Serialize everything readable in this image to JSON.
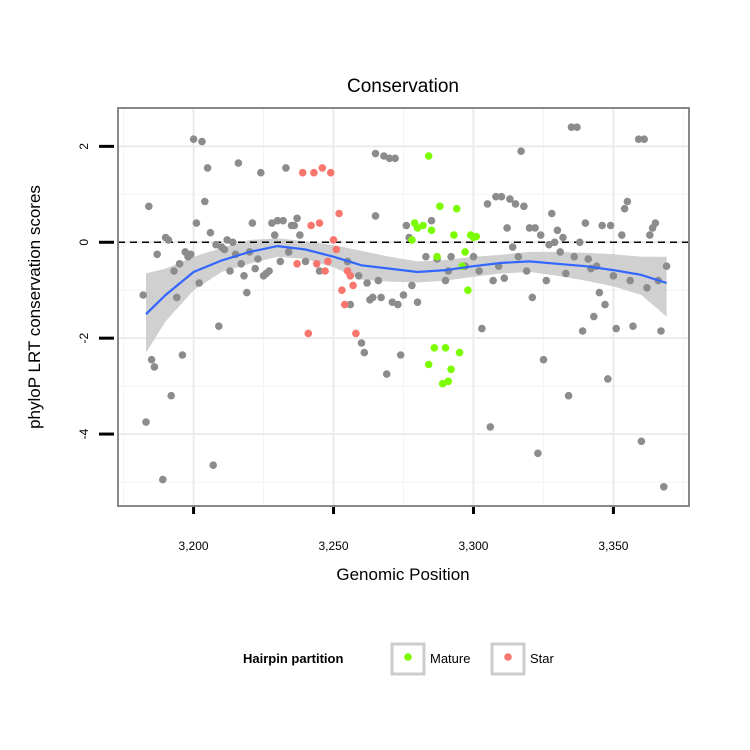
{
  "chart_data": {
    "type": "scatter",
    "title": "Conservation",
    "xlabel": "Genomic Position",
    "ylabel": "phyloP LRT conservation scores",
    "xlim": [
      3173,
      3377
    ],
    "ylim": [
      -5.5,
      2.8
    ],
    "x_ticks": [
      3200,
      3250,
      3300,
      3350
    ],
    "x_tick_labels": [
      "3,200",
      "3,250",
      "3,300",
      "3,350"
    ],
    "y_ticks": [
      -4,
      -2,
      0,
      2
    ],
    "y_tick_labels": [
      "-4",
      "-2",
      "0",
      "2"
    ],
    "reference_line": {
      "y": 0,
      "style": "dashed"
    },
    "grid": true,
    "legend": {
      "title": "Hairpin partition",
      "position": "bottom",
      "entries": [
        {
          "label": "Mature",
          "color": "#7cfc00"
        },
        {
          "label": "Star",
          "color": "#f8766d"
        }
      ]
    },
    "colors": {
      "other": "#8c8c8c",
      "mature": "#7cfc00",
      "star": "#f8766d",
      "smooth_line": "#3366ff",
      "confidence_band": "#c8c8c8"
    },
    "smooth": {
      "x": [
        3183,
        3190,
        3200,
        3210,
        3220,
        3230,
        3240,
        3250,
        3260,
        3270,
        3280,
        3290,
        3300,
        3310,
        3320,
        3330,
        3340,
        3350,
        3360,
        3369
      ],
      "y": [
        -1.5,
        -1.1,
        -0.62,
        -0.38,
        -0.2,
        -0.08,
        -0.15,
        -0.3,
        -0.48,
        -0.55,
        -0.62,
        -0.58,
        -0.5,
        -0.43,
        -0.4,
        -0.45,
        -0.5,
        -0.58,
        -0.68,
        -0.85
      ],
      "upper": [
        -0.65,
        -0.55,
        -0.3,
        -0.12,
        0.05,
        0.08,
        0.02,
        -0.06,
        -0.18,
        -0.3,
        -0.4,
        -0.37,
        -0.3,
        -0.26,
        -0.2,
        -0.2,
        -0.22,
        -0.25,
        -0.3,
        -0.3
      ],
      "lower": [
        -2.3,
        -1.65,
        -1.0,
        -0.62,
        -0.45,
        -0.3,
        -0.35,
        -0.52,
        -0.78,
        -0.82,
        -0.84,
        -0.8,
        -0.72,
        -0.65,
        -0.62,
        -0.7,
        -0.8,
        -0.92,
        -1.1,
        -1.55
      ]
    },
    "series": [
      {
        "name": "Mature",
        "points": [
          [
            3278,
            0.05
          ],
          [
            3279,
            0.4
          ],
          [
            3280,
            0.3
          ],
          [
            3282,
            0.35
          ],
          [
            3284,
            1.8
          ],
          [
            3285,
            0.25
          ],
          [
            3286,
            -2.2
          ],
          [
            3287,
            -0.3
          ],
          [
            3288,
            0.75
          ],
          [
            3289,
            -2.95
          ],
          [
            3290,
            -2.2
          ],
          [
            3291,
            -2.9
          ],
          [
            3292,
            -2.65
          ],
          [
            3293,
            0.15
          ],
          [
            3294,
            0.7
          ],
          [
            3295,
            -2.3
          ],
          [
            3296,
            -0.5
          ],
          [
            3297,
            -0.2
          ],
          [
            3298,
            -1.0
          ],
          [
            3299,
            0.15
          ],
          [
            3300,
            0.1
          ],
          [
            3301,
            0.12
          ],
          [
            3284,
            -2.55
          ]
        ]
      },
      {
        "name": "Star",
        "points": [
          [
            3237,
            -0.45
          ],
          [
            3239,
            1.45
          ],
          [
            3241,
            -1.9
          ],
          [
            3242,
            0.35
          ],
          [
            3243,
            1.45
          ],
          [
            3244,
            -0.45
          ],
          [
            3245,
            0.4
          ],
          [
            3246,
            1.55
          ],
          [
            3247,
            -0.6
          ],
          [
            3248,
            -0.4
          ],
          [
            3249,
            1.45
          ],
          [
            3250,
            0.05
          ],
          [
            3251,
            -0.15
          ],
          [
            3252,
            0.6
          ],
          [
            3253,
            -1.0
          ],
          [
            3254,
            -1.3
          ],
          [
            3255,
            -0.6
          ],
          [
            3256,
            -0.7
          ],
          [
            3257,
            -0.9
          ],
          [
            3258,
            -1.9
          ]
        ]
      },
      {
        "name": "",
        "points": [
          [
            3182,
            -1.1
          ],
          [
            3183,
            -3.75
          ],
          [
            3184,
            0.75
          ],
          [
            3185,
            -2.45
          ],
          [
            3186,
            -2.6
          ],
          [
            3187,
            -0.25
          ],
          [
            3189,
            -4.95
          ],
          [
            3190,
            0.1
          ],
          [
            3191,
            0.05
          ],
          [
            3192,
            -3.2
          ],
          [
            3193,
            -0.6
          ],
          [
            3194,
            -1.15
          ],
          [
            3195,
            -0.45
          ],
          [
            3196,
            -2.35
          ],
          [
            3197,
            -0.2
          ],
          [
            3198,
            -0.3
          ],
          [
            3199,
            -0.25
          ],
          [
            3200,
            2.15
          ],
          [
            3201,
            0.4
          ],
          [
            3202,
            -0.85
          ],
          [
            3203,
            2.1
          ],
          [
            3204,
            0.85
          ],
          [
            3205,
            1.55
          ],
          [
            3206,
            0.2
          ],
          [
            3207,
            -4.65
          ],
          [
            3208,
            -0.05
          ],
          [
            3209,
            -1.75
          ],
          [
            3210,
            -0.1
          ],
          [
            3211,
            -0.15
          ],
          [
            3212,
            0.05
          ],
          [
            3213,
            -0.6
          ],
          [
            3214,
            0.0
          ],
          [
            3215,
            -0.25
          ],
          [
            3216,
            1.65
          ],
          [
            3217,
            -0.45
          ],
          [
            3218,
            -0.7
          ],
          [
            3219,
            -1.05
          ],
          [
            3220,
            -0.2
          ],
          [
            3221,
            0.4
          ],
          [
            3222,
            -0.55
          ],
          [
            3223,
            -0.35
          ],
          [
            3224,
            1.45
          ],
          [
            3225,
            -0.7
          ],
          [
            3226,
            -0.65
          ],
          [
            3227,
            -0.6
          ],
          [
            3228,
            0.4
          ],
          [
            3229,
            0.15
          ],
          [
            3230,
            0.45
          ],
          [
            3231,
            -0.4
          ],
          [
            3232,
            0.45
          ],
          [
            3233,
            1.55
          ],
          [
            3234,
            -0.2
          ],
          [
            3235,
            0.35
          ],
          [
            3236,
            0.35
          ],
          [
            3237,
            0.5
          ],
          [
            3238,
            0.15
          ],
          [
            3240,
            -0.4
          ],
          [
            3245,
            -0.6
          ],
          [
            3255,
            -0.4
          ],
          [
            3256,
            -1.3
          ],
          [
            3259,
            -0.7
          ],
          [
            3260,
            -2.1
          ],
          [
            3261,
            -2.3
          ],
          [
            3262,
            -0.85
          ],
          [
            3263,
            -1.2
          ],
          [
            3264,
            -1.15
          ],
          [
            3265,
            0.55
          ],
          [
            3265,
            1.85
          ],
          [
            3266,
            -0.8
          ],
          [
            3267,
            -1.15
          ],
          [
            3268,
            1.8
          ],
          [
            3269,
            -2.75
          ],
          [
            3270,
            1.75
          ],
          [
            3271,
            -1.25
          ],
          [
            3272,
            1.75
          ],
          [
            3273,
            -1.3
          ],
          [
            3274,
            -2.35
          ],
          [
            3275,
            -1.1
          ],
          [
            3276,
            0.35
          ],
          [
            3277,
            0.1
          ],
          [
            3278,
            -0.9
          ],
          [
            3280,
            -1.25
          ],
          [
            3283,
            -0.3
          ],
          [
            3285,
            0.45
          ],
          [
            3287,
            -0.35
          ],
          [
            3290,
            -0.8
          ],
          [
            3291,
            -0.6
          ],
          [
            3292,
            -0.3
          ],
          [
            3297,
            -0.5
          ],
          [
            3300,
            -0.3
          ],
          [
            3302,
            -0.6
          ],
          [
            3303,
            -1.8
          ],
          [
            3305,
            0.8
          ],
          [
            3306,
            -3.85
          ],
          [
            3307,
            -0.8
          ],
          [
            3308,
            0.95
          ],
          [
            3309,
            -0.5
          ],
          [
            3310,
            0.95
          ],
          [
            3311,
            -0.75
          ],
          [
            3312,
            0.3
          ],
          [
            3313,
            0.9
          ],
          [
            3314,
            -0.1
          ],
          [
            3315,
            0.8
          ],
          [
            3316,
            -0.3
          ],
          [
            3317,
            1.9
          ],
          [
            3318,
            0.75
          ],
          [
            3319,
            -0.6
          ],
          [
            3320,
            0.3
          ],
          [
            3321,
            -1.15
          ],
          [
            3322,
            0.3
          ],
          [
            3323,
            -4.4
          ],
          [
            3324,
            0.15
          ],
          [
            3325,
            -2.45
          ],
          [
            3326,
            -0.8
          ],
          [
            3327,
            -0.05
          ],
          [
            3328,
            0.6
          ],
          [
            3329,
            0.0
          ],
          [
            3330,
            0.25
          ],
          [
            3331,
            -0.2
          ],
          [
            3332,
            0.1
          ],
          [
            3333,
            -0.65
          ],
          [
            3334,
            -3.2
          ],
          [
            3335,
            2.4
          ],
          [
            3336,
            -0.3
          ],
          [
            3337,
            2.4
          ],
          [
            3338,
            0.0
          ],
          [
            3339,
            -1.85
          ],
          [
            3340,
            0.4
          ],
          [
            3341,
            -0.35
          ],
          [
            3342,
            -0.55
          ],
          [
            3343,
            -1.55
          ],
          [
            3344,
            -0.5
          ],
          [
            3345,
            -1.05
          ],
          [
            3346,
            0.35
          ],
          [
            3347,
            -1.3
          ],
          [
            3348,
            -2.85
          ],
          [
            3349,
            0.35
          ],
          [
            3350,
            -0.7
          ],
          [
            3351,
            -1.8
          ],
          [
            3353,
            0.15
          ],
          [
            3354,
            0.7
          ],
          [
            3355,
            0.85
          ],
          [
            3356,
            -0.8
          ],
          [
            3357,
            -1.75
          ],
          [
            3359,
            2.15
          ],
          [
            3360,
            -4.15
          ],
          [
            3361,
            2.15
          ],
          [
            3362,
            -0.95
          ],
          [
            3363,
            0.15
          ],
          [
            3364,
            0.3
          ],
          [
            3365,
            0.4
          ],
          [
            3366,
            -0.8
          ],
          [
            3367,
            -1.85
          ],
          [
            3368,
            -5.1
          ],
          [
            3369,
            -0.5
          ]
        ]
      }
    ]
  }
}
